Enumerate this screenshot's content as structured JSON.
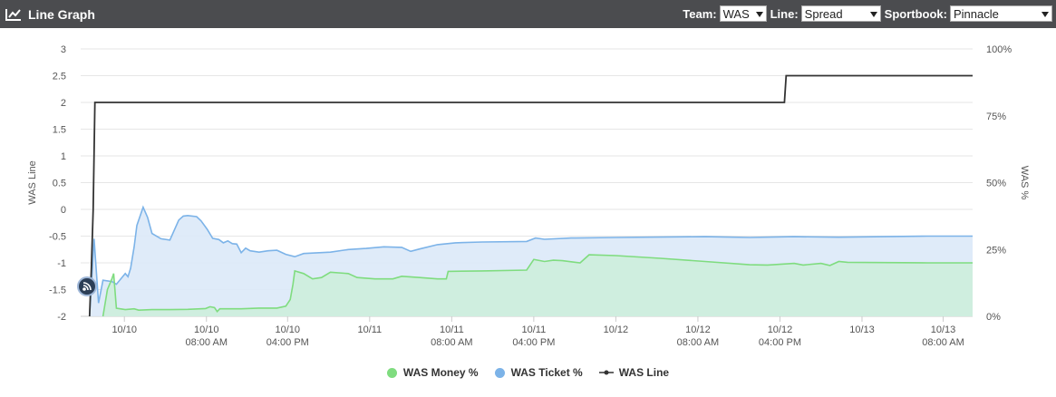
{
  "header": {
    "title": "Line Graph",
    "icon": "line-chart-icon"
  },
  "controls": {
    "team_label": "Team:",
    "team_value": "WAS",
    "line_label": "Line:",
    "line_value": "Spread",
    "book_label": "Sportbook:",
    "book_value": "Pinnacle"
  },
  "colors": {
    "header_bg": "#4b4c4f",
    "money": "#7fdc7f",
    "money_fill": "#cdeedd",
    "ticket": "#7cb3e8",
    "ticket_fill": "#dce9f8",
    "line": "#333333"
  },
  "feed_icon": "rss-feed-icon",
  "chart_data": {
    "type": "line",
    "ylabel_left": "WAS Line",
    "ylabel_right": "WAS %",
    "left_ticks": [
      "3",
      "2.5",
      "2",
      "1.5",
      "1",
      "0.5",
      "0",
      "-0.5",
      "-1",
      "-1.5",
      "-2"
    ],
    "right_ticks": [
      "100%",
      "75%",
      "50%",
      "25%",
      "0%"
    ],
    "ylim_left": [
      -2,
      3
    ],
    "ylim_right": [
      0,
      100
    ],
    "xlim": [
      0,
      100
    ],
    "x_ticks": [
      {
        "x": 4.9,
        "l1": "10/10",
        "l2": ""
      },
      {
        "x": 14.1,
        "l1": "10/10",
        "l2": "08:00 AM"
      },
      {
        "x": 23.2,
        "l1": "10/10",
        "l2": "04:00 PM"
      },
      {
        "x": 32.4,
        "l1": "10/11",
        "l2": ""
      },
      {
        "x": 41.6,
        "l1": "10/11",
        "l2": "08:00 AM"
      },
      {
        "x": 50.8,
        "l1": "10/11",
        "l2": "04:00 PM"
      },
      {
        "x": 60.0,
        "l1": "10/12",
        "l2": ""
      },
      {
        "x": 69.2,
        "l1": "10/12",
        "l2": "08:00 AM"
      },
      {
        "x": 78.4,
        "l1": "10/12",
        "l2": "04:00 PM"
      },
      {
        "x": 87.6,
        "l1": "10/13",
        "l2": ""
      },
      {
        "x": 96.7,
        "l1": "10/13",
        "l2": "08:00 AM"
      }
    ],
    "series": [
      {
        "name": "WAS Money %",
        "axis": "right",
        "type": "area",
        "points": [
          [
            2.5,
            0
          ],
          [
            3.0,
            10
          ],
          [
            3.5,
            14
          ],
          [
            3.7,
            16
          ],
          [
            4.0,
            3
          ],
          [
            5.0,
            2.5
          ],
          [
            6.0,
            2.8
          ],
          [
            6.5,
            2.3
          ],
          [
            8,
            2.5
          ],
          [
            10,
            2.5
          ],
          [
            12,
            2.6
          ],
          [
            14,
            2.9
          ],
          [
            14.5,
            3.6
          ],
          [
            15.0,
            3.3
          ],
          [
            15.3,
            1.8
          ],
          [
            15.6,
            2.8
          ],
          [
            18,
            2.8
          ],
          [
            20,
            3.1
          ],
          [
            22,
            3.1
          ],
          [
            23,
            3.8
          ],
          [
            23.5,
            6.3
          ],
          [
            23.8,
            12
          ],
          [
            24,
            17
          ],
          [
            25,
            16
          ],
          [
            26,
            14
          ],
          [
            27,
            14.5
          ],
          [
            28,
            16.5
          ],
          [
            30,
            16
          ],
          [
            31,
            14.5
          ],
          [
            33,
            14
          ],
          [
            35,
            14
          ],
          [
            36,
            15
          ],
          [
            38,
            14.5
          ],
          [
            40,
            14
          ],
          [
            41,
            14
          ],
          [
            41.2,
            16.8
          ],
          [
            45,
            17
          ],
          [
            50,
            17.3
          ],
          [
            50.8,
            21.3
          ],
          [
            52,
            20.5
          ],
          [
            53,
            21
          ],
          [
            54,
            20.8
          ],
          [
            56,
            20
          ],
          [
            57,
            23
          ],
          [
            60,
            22.7
          ],
          [
            65,
            21.7
          ],
          [
            70,
            20.5
          ],
          [
            75,
            19.3
          ],
          [
            77,
            19.2
          ],
          [
            80,
            19.8
          ],
          [
            81,
            19.2
          ],
          [
            83,
            19.8
          ],
          [
            84,
            19
          ],
          [
            85,
            20.5
          ],
          [
            86,
            20.2
          ],
          [
            90,
            20.1
          ],
          [
            95,
            20
          ],
          [
            100,
            20
          ]
        ]
      },
      {
        "name": "WAS Ticket %",
        "axis": "right",
        "type": "area",
        "points": [
          [
            1.0,
            0
          ],
          [
            1.5,
            29
          ],
          [
            2.0,
            5
          ],
          [
            2.5,
            13.5
          ],
          [
            3.5,
            13
          ],
          [
            4,
            12
          ],
          [
            5,
            16
          ],
          [
            5.3,
            14.8
          ],
          [
            5.6,
            18
          ],
          [
            6,
            26
          ],
          [
            6.3,
            34
          ],
          [
            7,
            40.8
          ],
          [
            7.5,
            37
          ],
          [
            8,
            31
          ],
          [
            9.0,
            29
          ],
          [
            10,
            28.5
          ],
          [
            11,
            36
          ],
          [
            11.5,
            37.5
          ],
          [
            12,
            37.7
          ],
          [
            13,
            37.3
          ],
          [
            13.5,
            35.7
          ],
          [
            14.2,
            32.5
          ],
          [
            14.8,
            29.2
          ],
          [
            15.5,
            28.7
          ],
          [
            16,
            27.5
          ],
          [
            16.5,
            28.2
          ],
          [
            17,
            27.2
          ],
          [
            17.5,
            27
          ],
          [
            18,
            23.8
          ],
          [
            18.5,
            25.5
          ],
          [
            19,
            24.5
          ],
          [
            20,
            24
          ],
          [
            21,
            24.5
          ],
          [
            22,
            24.7
          ],
          [
            23,
            23.2
          ],
          [
            24,
            22.3
          ],
          [
            25,
            23.5
          ],
          [
            28,
            24
          ],
          [
            30,
            25
          ],
          [
            32,
            25.4
          ],
          [
            34,
            26
          ],
          [
            36,
            25.8
          ],
          [
            37,
            24.3
          ],
          [
            38,
            25.2
          ],
          [
            40,
            26.8
          ],
          [
            42,
            27.5
          ],
          [
            45,
            27.8
          ],
          [
            50,
            28
          ],
          [
            51,
            29.3
          ],
          [
            52,
            28.8
          ],
          [
            55,
            29.3
          ],
          [
            60,
            29.5
          ],
          [
            70,
            29.8
          ],
          [
            75,
            29.5
          ],
          [
            80,
            29.8
          ],
          [
            85,
            29.6
          ],
          [
            90,
            29.8
          ],
          [
            95,
            30
          ],
          [
            100,
            30
          ]
        ]
      },
      {
        "name": "WAS Line",
        "axis": "left",
        "type": "step",
        "points": [
          [
            1.0,
            -2
          ],
          [
            1.2,
            -1.1
          ],
          [
            1.4,
            0
          ],
          [
            1.6,
            2
          ],
          [
            3,
            2
          ],
          [
            20,
            2
          ],
          [
            40,
            2
          ],
          [
            60,
            2
          ],
          [
            78.9,
            2
          ],
          [
            79.1,
            2.5
          ],
          [
            100,
            2.5
          ]
        ]
      }
    ]
  }
}
